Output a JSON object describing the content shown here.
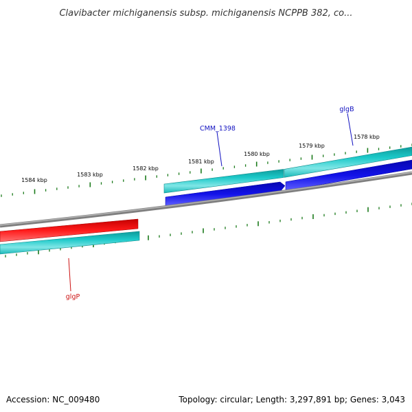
{
  "title": "Clavibacter michiganensis subsp. michiganensis NCPPB 382, co...",
  "footer": {
    "accession": "Accession: NC_009480",
    "summary": "Topology: circular; Length: 3,297,891 bp; Genes: 3,043"
  },
  "scale_labels": [
    "1584 kbp",
    "1583 kbp",
    "1582 kbp",
    "1581 kbp",
    "1580 kbp",
    "1579 kbp",
    "1578 kbp"
  ],
  "gene_labels": {
    "cmm1398": "CMM_1398",
    "glgB": "glgB",
    "glgP": "glgP"
  },
  "colors": {
    "backbone": "#7f7f7f",
    "tick": "#1a7a1a",
    "cds_cyan": "#1cc7c7",
    "cds_cyan_dark": "#108f8f",
    "gene_blue": "#0b0bdf",
    "gene_red": "#ee1111",
    "label_blue": "#1010c0",
    "label_red": "#cc1010"
  }
}
